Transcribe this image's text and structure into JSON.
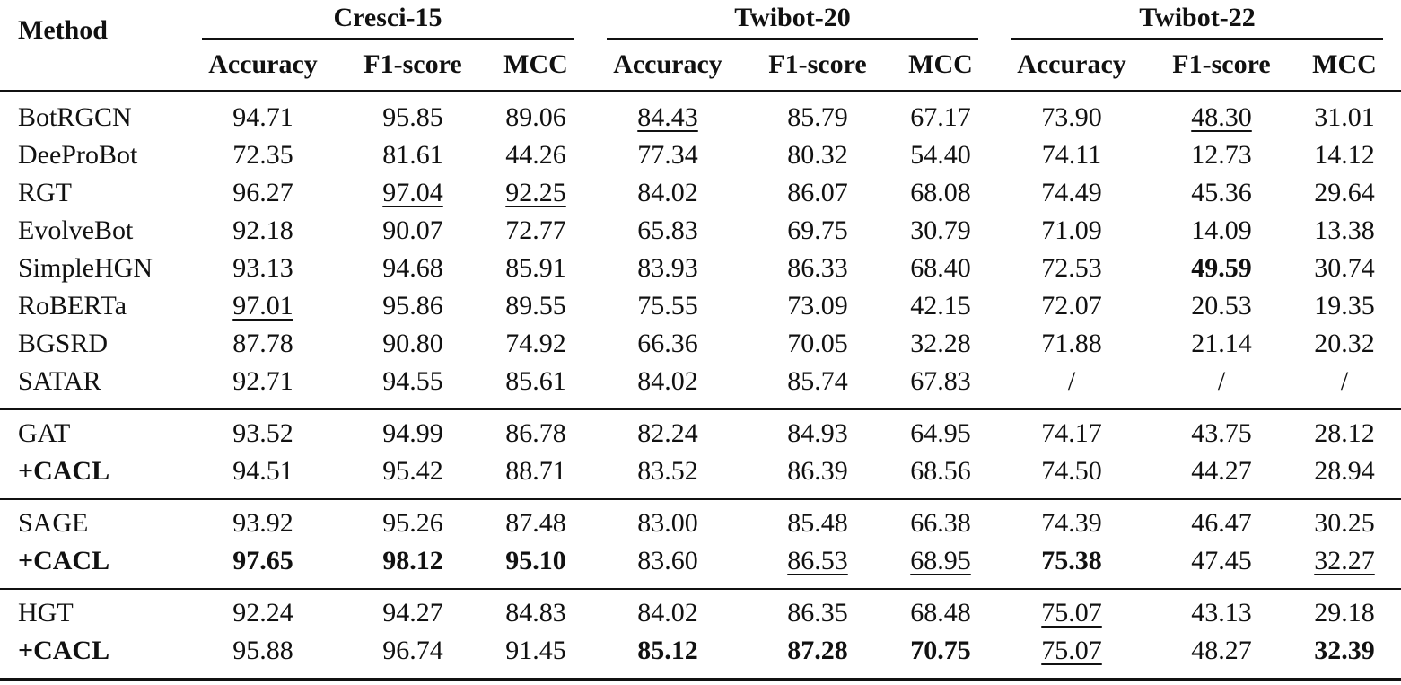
{
  "table": {
    "method_header": "Method",
    "dataset_groups": [
      "Cresci-15",
      "Twibot-20",
      "Twibot-22"
    ],
    "metric_headers": [
      "Accuracy",
      "F1-score",
      "MCC",
      "Accuracy",
      "F1-score",
      "MCC",
      "Accuracy",
      "F1-score",
      "MCC"
    ],
    "blocks": [
      {
        "rows": [
          {
            "method": "BotRGCN",
            "values": [
              "94.71",
              "95.85",
              "89.06",
              "84.43",
              "85.79",
              "67.17",
              "73.90",
              "48.30",
              "31.01"
            ],
            "bold": [],
            "underline": [
              3,
              7
            ]
          },
          {
            "method": "DeeProBot",
            "values": [
              "72.35",
              "81.61",
              "44.26",
              "77.34",
              "80.32",
              "54.40",
              "74.11",
              "12.73",
              "14.12"
            ],
            "bold": [],
            "underline": []
          },
          {
            "method": "RGT",
            "values": [
              "96.27",
              "97.04",
              "92.25",
              "84.02",
              "86.07",
              "68.08",
              "74.49",
              "45.36",
              "29.64"
            ],
            "bold": [],
            "underline": [
              1,
              2
            ]
          },
          {
            "method": "EvolveBot",
            "values": [
              "92.18",
              "90.07",
              "72.77",
              "65.83",
              "69.75",
              "30.79",
              "71.09",
              "14.09",
              "13.38"
            ],
            "bold": [],
            "underline": []
          },
          {
            "method": "SimpleHGN",
            "values": [
              "93.13",
              "94.68",
              "85.91",
              "83.93",
              "86.33",
              "68.40",
              "72.53",
              "49.59",
              "30.74"
            ],
            "bold": [
              7
            ],
            "underline": []
          },
          {
            "method": "RoBERTa",
            "values": [
              "97.01",
              "95.86",
              "89.55",
              "75.55",
              "73.09",
              "42.15",
              "72.07",
              "20.53",
              "19.35"
            ],
            "bold": [],
            "underline": [
              0
            ]
          },
          {
            "method": "BGSRD",
            "values": [
              "87.78",
              "90.80",
              "74.92",
              "66.36",
              "70.05",
              "32.28",
              "71.88",
              "21.14",
              "20.32"
            ],
            "bold": [],
            "underline": []
          },
          {
            "method": "SATAR",
            "values": [
              "92.71",
              "94.55",
              "85.61",
              "84.02",
              "85.74",
              "67.83",
              "/",
              "/",
              "/"
            ],
            "bold": [],
            "underline": []
          }
        ]
      },
      {
        "rows": [
          {
            "method": "GAT",
            "values": [
              "93.52",
              "94.99",
              "86.78",
              "82.24",
              "84.93",
              "64.95",
              "74.17",
              "43.75",
              "28.12"
            ],
            "bold": [],
            "underline": []
          },
          {
            "method": "+CACL",
            "method_bold": true,
            "values": [
              "94.51",
              "95.42",
              "88.71",
              "83.52",
              "86.39",
              "68.56",
              "74.50",
              "44.27",
              "28.94"
            ],
            "bold": [],
            "underline": []
          }
        ]
      },
      {
        "rows": [
          {
            "method": "SAGE",
            "values": [
              "93.92",
              "95.26",
              "87.48",
              "83.00",
              "85.48",
              "66.38",
              "74.39",
              "46.47",
              "30.25"
            ],
            "bold": [],
            "underline": []
          },
          {
            "method": "+CACL",
            "method_bold": true,
            "values": [
              "97.65",
              "98.12",
              "95.10",
              "83.60",
              "86.53",
              "68.95",
              "75.38",
              "47.45",
              "32.27"
            ],
            "bold": [
              0,
              1,
              2,
              6
            ],
            "underline": [
              4,
              5,
              8
            ]
          }
        ]
      },
      {
        "rows": [
          {
            "method": "HGT",
            "values": [
              "92.24",
              "94.27",
              "84.83",
              "84.02",
              "86.35",
              "68.48",
              "75.07",
              "43.13",
              "29.18"
            ],
            "bold": [],
            "underline": [
              6
            ]
          },
          {
            "method": "+CACL",
            "method_bold": true,
            "values": [
              "95.88",
              "96.74",
              "91.45",
              "85.12",
              "87.28",
              "70.75",
              "75.07",
              "48.27",
              "32.39"
            ],
            "bold": [
              3,
              4,
              5,
              8
            ],
            "underline": [
              6
            ]
          }
        ]
      }
    ]
  }
}
